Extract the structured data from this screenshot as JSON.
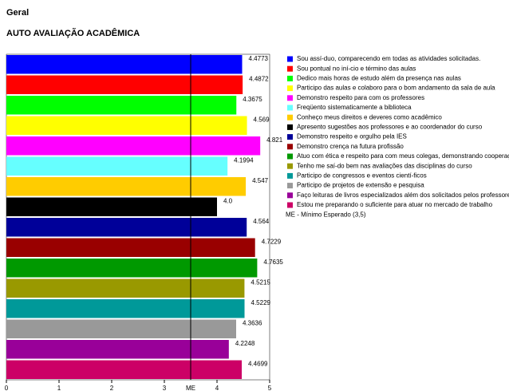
{
  "chart_data": {
    "type": "barh",
    "title": "Geral",
    "subtitle": "AUTO AVALIAÇÃO ACADÊMICA",
    "categories": [
      "Sou assí-duo, comparecendo em todas as atividades solicitadas.",
      "Sou pontual no iní-cio e término das aulas",
      "Dedico mais horas de estudo além da presença nas aulas",
      "Participo das aulas e colaboro para o bom andamento da sala de aula",
      "Demonstro respeito para com os professores",
      "Freqüento sistematicamente a biblioteca",
      "Conheço meus direitos e deveres como acadêmico",
      "Apresento sugestões aos professores e ao coordenador do curso",
      "Demonstro respeito e orgulho pela IES",
      "Demonstro crença na futura profissão",
      "Atuo com ética e respeito para com meus colegas, demonstrando cooperação",
      "Tenho me saí-do bem nas avaliações das disciplinas do curso",
      "Participo de congressos e eventos cientí-ficos",
      "Participo de projetos de extensão e pesquisa",
      "Faço leituras de livros especializados além dos solicitados pelos professores",
      "Estou me preparando o suficiente para atuar no mercado de trabalho"
    ],
    "values": [
      4.4773,
      4.4872,
      4.3675,
      4.569,
      4.821,
      4.1994,
      4.547,
      4.0,
      4.564,
      4.7229,
      4.7635,
      4.5215,
      4.5229,
      4.3636,
      4.2248,
      4.4699
    ],
    "value_labels": [
      "4.4773",
      "4.4872",
      "4.3675",
      "4.569",
      "4.821",
      "4.1994",
      "4.547",
      "4.0",
      "4.564",
      "4.7229",
      "4.7635",
      "4.5215",
      "4.5229",
      "4.3636",
      "4.2248",
      "4.4699"
    ],
    "colors": [
      "#0000ff",
      "#ff0000",
      "#00ff00",
      "#ffff00",
      "#ff00ff",
      "#66ffff",
      "#ffcc00",
      "#000000",
      "#000099",
      "#990000",
      "#009900",
      "#999900",
      "#009999",
      "#999999",
      "#990099",
      "#cc0066"
    ],
    "xlim": [
      0,
      5
    ],
    "xticks": [
      0,
      1,
      2,
      3,
      4,
      5
    ],
    "reference": {
      "value": 3.5,
      "label": "ME"
    },
    "legend_note": "ME - Mínimo Esperado (3,5)",
    "legend": "right"
  }
}
